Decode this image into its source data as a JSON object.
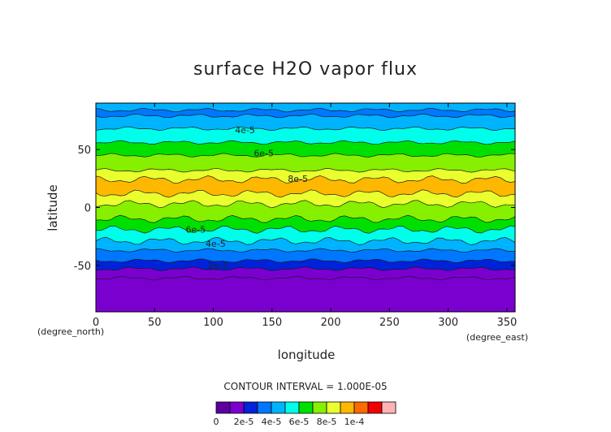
{
  "chart_data": {
    "type": "heatmap",
    "title": "surface H2O vapor flux",
    "xlabel": "longitude",
    "ylabel": "latitude",
    "x_units": "(degree_east)",
    "y_units": "(degree_north)",
    "xlim": [
      0,
      357
    ],
    "ylim": [
      -90,
      90
    ],
    "x_ticks": [
      "0",
      "50",
      "100",
      "150",
      "200",
      "250",
      "300",
      "350"
    ],
    "x_tick_values": [
      0,
      50,
      100,
      150,
      200,
      250,
      300,
      350
    ],
    "y_ticks": [
      "50",
      "0",
      "-50"
    ],
    "y_tick_values": [
      50,
      0,
      -50
    ],
    "contour_interval_label": "CONTOUR INTERVAL = 1.000E-05",
    "contour_labels": [
      {
        "text": "4e-5",
        "x": 127,
        "y": 67
      },
      {
        "text": "6e-5",
        "x": 143,
        "y": 47
      },
      {
        "text": "8e-5",
        "x": 172,
        "y": 25
      },
      {
        "text": "6e-5",
        "x": 85,
        "y": -19
      },
      {
        "text": "4e-5",
        "x": 102,
        "y": -31
      },
      {
        "text": "2e-5",
        "x": 104,
        "y": -50
      }
    ],
    "latitude_bands": [
      {
        "lat_top": 90,
        "lat_bottom": 84,
        "value": 3.5e-05
      },
      {
        "lat_top": 84,
        "lat_bottom": 79,
        "value": 2.5e-05
      },
      {
        "lat_top": 79,
        "lat_bottom": 68,
        "value": 3.5e-05
      },
      {
        "lat_top": 68,
        "lat_bottom": 56,
        "value": 4.5e-05
      },
      {
        "lat_top": 56,
        "lat_bottom": 45,
        "value": 5.5e-05
      },
      {
        "lat_top": 45,
        "lat_bottom": 32,
        "value": 6.5e-05
      },
      {
        "lat_top": 32,
        "lat_bottom": 24,
        "value": 7.5e-05
      },
      {
        "lat_top": 24,
        "lat_bottom": 12,
        "value": 8.5e-05
      },
      {
        "lat_top": 12,
        "lat_bottom": 3,
        "value": 7.5e-05
      },
      {
        "lat_top": 3,
        "lat_bottom": -10,
        "value": 6.5e-05
      },
      {
        "lat_top": -10,
        "lat_bottom": -19,
        "value": 5.5e-05
      },
      {
        "lat_top": -19,
        "lat_bottom": -29,
        "value": 4.5e-05
      },
      {
        "lat_top": -29,
        "lat_bottom": -37,
        "value": 3.5e-05
      },
      {
        "lat_top": -37,
        "lat_bottom": -46,
        "value": 2.5e-05
      },
      {
        "lat_top": -46,
        "lat_bottom": -53,
        "value": 1.5e-05
      },
      {
        "lat_top": -53,
        "lat_bottom": -61,
        "value": 5e-06
      },
      {
        "lat_top": -61,
        "lat_bottom": -90,
        "value": 5e-06
      }
    ],
    "colorbar": {
      "colors": [
        "#5b009e",
        "#7a00d0",
        "#0022d9",
        "#0077ff",
        "#00b3ff",
        "#00ffea",
        "#00e000",
        "#86f000",
        "#e9ff2e",
        "#ffb800",
        "#ff6a00",
        "#f00000",
        "#ffb3b3"
      ],
      "labels": [
        "0",
        "2e-5",
        "4e-5",
        "6e-5",
        "8e-5",
        "1e-4"
      ]
    }
  }
}
